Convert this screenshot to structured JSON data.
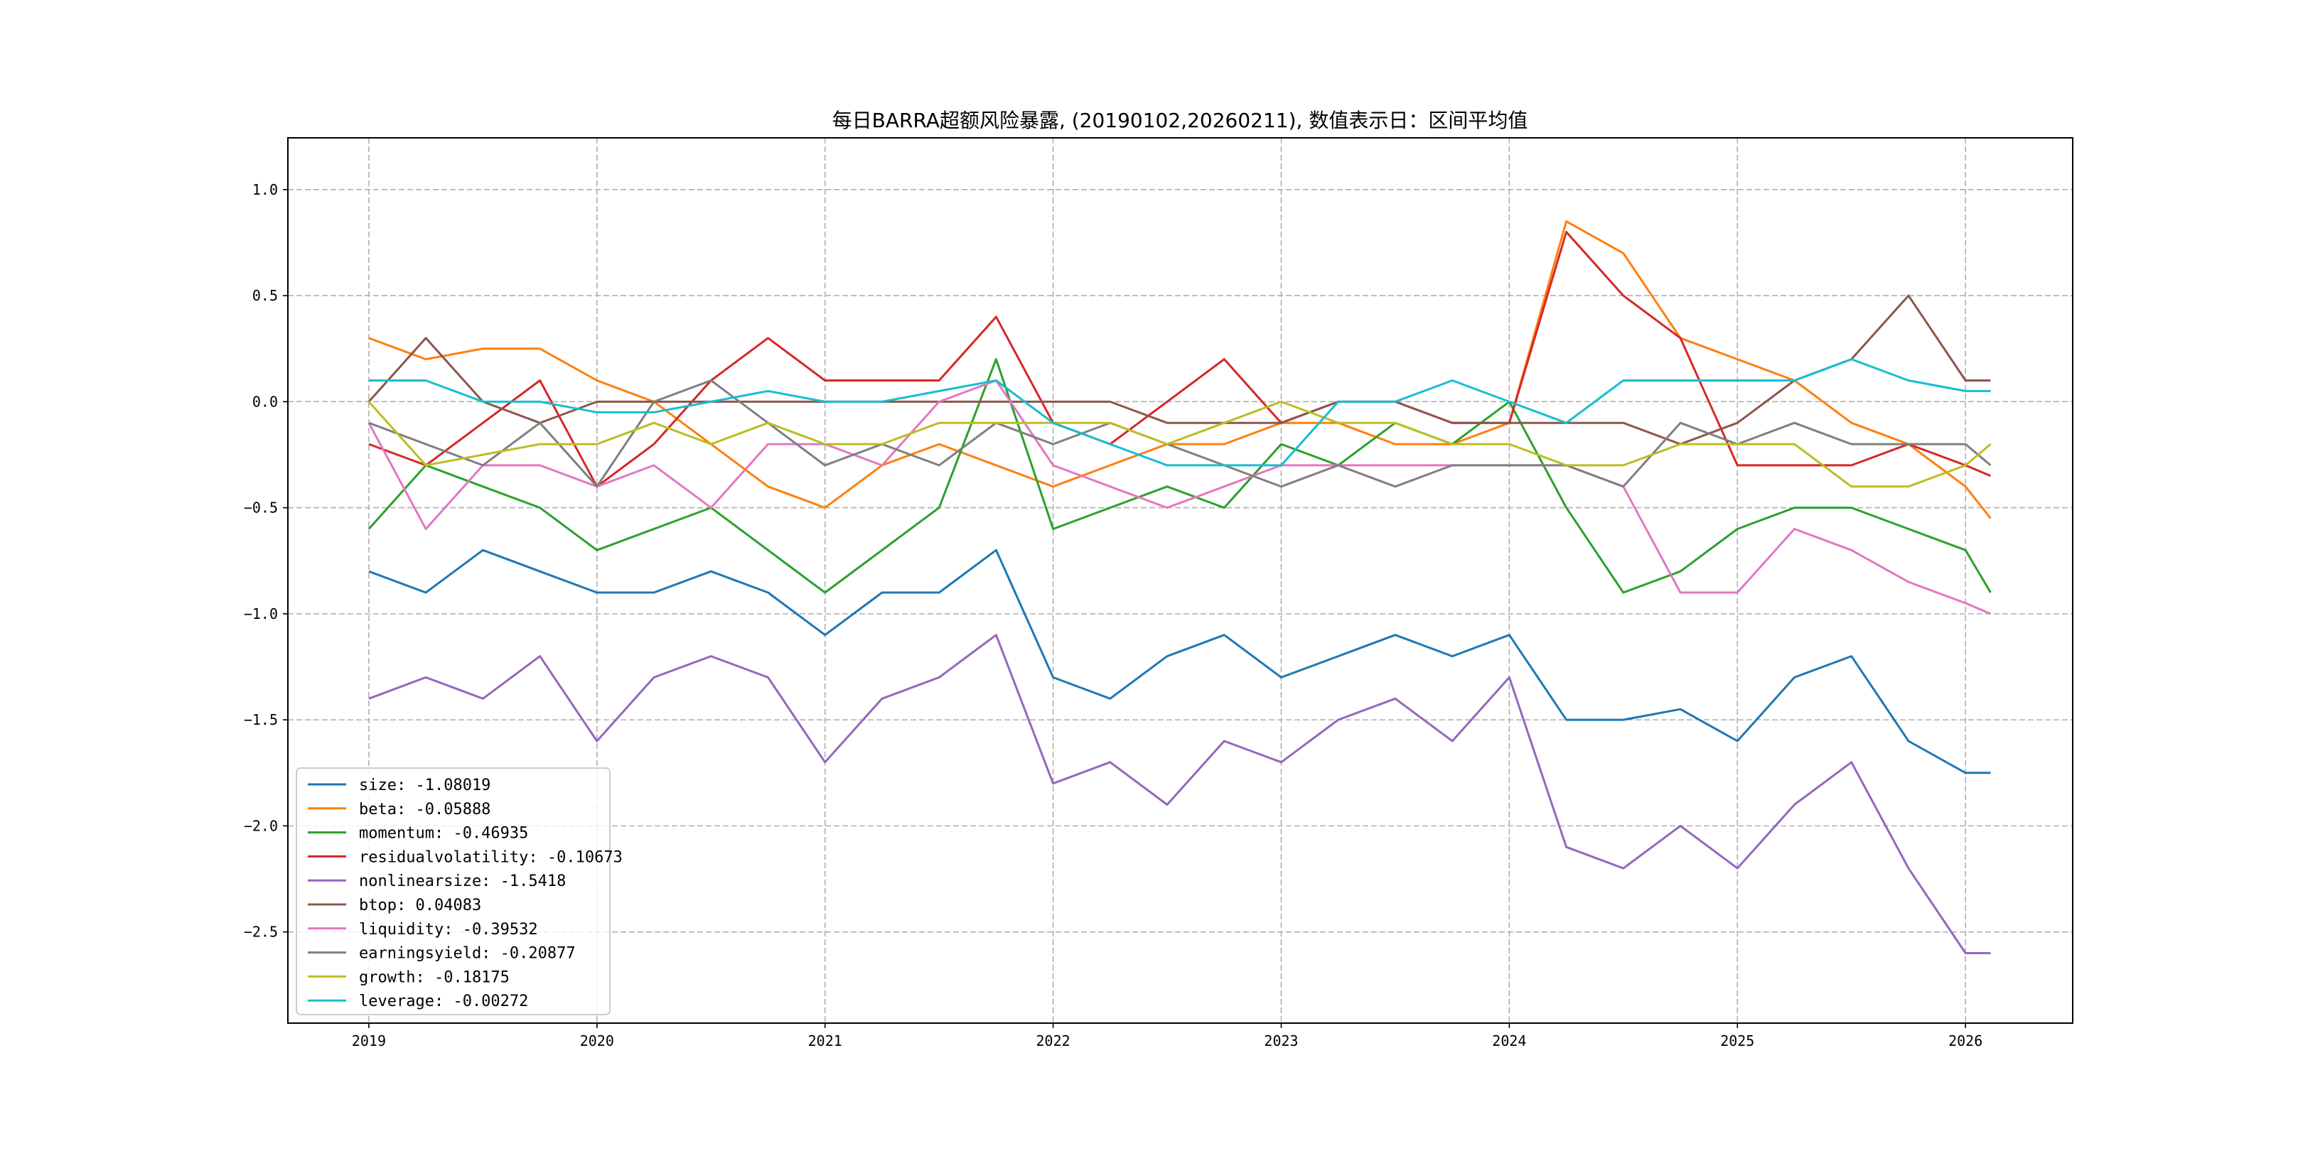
{
  "chart_data": {
    "type": "line",
    "title": "每日BARRA超额风险暴露, (20190102,20260211), 数值表示日：区间平均值",
    "xlabel": "",
    "ylabel": "",
    "xlim": [
      2018.645,
      2026.47
    ],
    "ylim": [
      -2.93,
      1.244
    ],
    "grid": true,
    "legend_position": "lower-left",
    "x_ticks": [
      2019,
      2020,
      2021,
      2022,
      2023,
      2024,
      2025,
      2026
    ],
    "x_tick_labels": [
      "2019",
      "2020",
      "2021",
      "2022",
      "2023",
      "2024",
      "2025",
      "2026"
    ],
    "y_ticks": [
      1.0,
      0.5,
      0.0,
      -0.5,
      -1.0,
      -1.5,
      -2.0,
      -2.5
    ],
    "y_tick_labels": [
      "1.0",
      "0.5",
      "0.0",
      "−0.5",
      "−1.0",
      "−1.5",
      "−2.0",
      "−2.5"
    ],
    "x": [
      2019.0,
      2019.25,
      2019.5,
      2019.75,
      2020.0,
      2020.25,
      2020.5,
      2020.75,
      2021.0,
      2021.25,
      2021.5,
      2021.75,
      2022.0,
      2022.25,
      2022.5,
      2022.75,
      2023.0,
      2023.25,
      2023.5,
      2023.75,
      2024.0,
      2024.25,
      2024.5,
      2024.75,
      2025.0,
      2025.25,
      2025.5,
      2025.75,
      2026.0,
      2026.11
    ],
    "series": [
      {
        "name": "size",
        "label": "size: -1.08019",
        "color": "#1f77b4",
        "values": [
          -0.8,
          -0.9,
          -0.7,
          -0.8,
          -0.9,
          -0.9,
          -0.8,
          -0.9,
          -1.1,
          -0.9,
          -0.9,
          -0.7,
          -1.3,
          -1.4,
          -1.2,
          -1.1,
          -1.3,
          -1.2,
          -1.1,
          -1.2,
          -1.1,
          -1.5,
          -1.5,
          -1.45,
          -1.6,
          -1.3,
          -1.2,
          -1.6,
          -1.75,
          -1.75
        ]
      },
      {
        "name": "beta",
        "label": "beta: -0.05888",
        "color": "#ff7f0e",
        "values": [
          0.3,
          0.2,
          0.25,
          0.25,
          0.1,
          0.0,
          -0.2,
          -0.4,
          -0.5,
          -0.3,
          -0.2,
          -0.3,
          -0.4,
          -0.3,
          -0.2,
          -0.2,
          -0.1,
          -0.1,
          -0.2,
          -0.2,
          -0.1,
          0.85,
          0.7,
          0.3,
          0.2,
          0.1,
          -0.1,
          -0.2,
          -0.4,
          -0.55
        ]
      },
      {
        "name": "momentum",
        "label": "momentum: -0.46935",
        "color": "#2ca02c",
        "values": [
          -0.6,
          -0.3,
          -0.4,
          -0.5,
          -0.7,
          -0.6,
          -0.5,
          -0.7,
          -0.9,
          -0.7,
          -0.5,
          0.2,
          -0.6,
          -0.5,
          -0.4,
          -0.5,
          -0.2,
          -0.3,
          -0.1,
          -0.2,
          0.0,
          -0.5,
          -0.9,
          -0.8,
          -0.6,
          -0.5,
          -0.5,
          -0.6,
          -0.7,
          -0.9
        ]
      },
      {
        "name": "residualvolatility",
        "label": "residualvolatility: -0.10673",
        "color": "#d62728",
        "values": [
          -0.2,
          -0.3,
          -0.1,
          0.1,
          -0.4,
          -0.2,
          0.1,
          0.3,
          0.1,
          0.1,
          0.1,
          0.4,
          -0.1,
          -0.2,
          0.0,
          0.2,
          -0.1,
          0.0,
          0.0,
          -0.1,
          -0.1,
          0.8,
          0.5,
          0.3,
          -0.3,
          -0.3,
          -0.3,
          -0.2,
          -0.3,
          -0.35
        ]
      },
      {
        "name": "nonlinearsize",
        "label": "nonlinearsize: -1.5418",
        "color": "#9467bd",
        "values": [
          -1.4,
          -1.3,
          -1.4,
          -1.2,
          -1.6,
          -1.3,
          -1.2,
          -1.3,
          -1.7,
          -1.4,
          -1.3,
          -1.1,
          -1.8,
          -1.7,
          -1.9,
          -1.6,
          -1.7,
          -1.5,
          -1.4,
          -1.6,
          -1.3,
          -2.1,
          -2.2,
          -2.0,
          -2.2,
          -1.9,
          -1.7,
          -2.2,
          -2.6,
          -2.6
        ]
      },
      {
        "name": "btop",
        "label": "btop: 0.04083",
        "color": "#8c564b",
        "values": [
          0.0,
          0.3,
          0.0,
          -0.1,
          0.0,
          0.0,
          0.0,
          0.0,
          0.0,
          0.0,
          0.0,
          0.0,
          0.0,
          0.0,
          -0.1,
          -0.1,
          -0.1,
          0.0,
          0.0,
          -0.1,
          -0.1,
          -0.1,
          -0.1,
          -0.2,
          -0.1,
          0.1,
          0.2,
          0.5,
          0.1,
          0.1
        ]
      },
      {
        "name": "liquidity",
        "label": "liquidity: -0.39532",
        "color": "#e377c2",
        "values": [
          -0.1,
          -0.6,
          -0.3,
          -0.3,
          -0.4,
          -0.3,
          -0.5,
          -0.2,
          -0.2,
          -0.3,
          0.0,
          0.1,
          -0.3,
          -0.4,
          -0.5,
          -0.4,
          -0.3,
          -0.3,
          -0.3,
          -0.3,
          -0.3,
          -0.3,
          -0.4,
          -0.9,
          -0.9,
          -0.6,
          -0.7,
          -0.85,
          -0.95,
          -1.0
        ]
      },
      {
        "name": "earningsyield",
        "label": "earningsyield: -0.20877",
        "color": "#7f7f7f",
        "values": [
          -0.1,
          -0.2,
          -0.3,
          -0.1,
          -0.4,
          0.0,
          0.1,
          -0.1,
          -0.3,
          -0.2,
          -0.3,
          -0.1,
          -0.2,
          -0.1,
          -0.2,
          -0.3,
          -0.4,
          -0.3,
          -0.4,
          -0.3,
          -0.3,
          -0.3,
          -0.4,
          -0.1,
          -0.2,
          -0.1,
          -0.2,
          -0.2,
          -0.2,
          -0.3
        ]
      },
      {
        "name": "growth",
        "label": "growth: -0.18175",
        "color": "#bcbd22",
        "values": [
          0.0,
          -0.3,
          -0.25,
          -0.2,
          -0.2,
          -0.1,
          -0.2,
          -0.1,
          -0.2,
          -0.2,
          -0.1,
          -0.1,
          -0.1,
          -0.1,
          -0.2,
          -0.1,
          0.0,
          -0.1,
          -0.1,
          -0.2,
          -0.2,
          -0.3,
          -0.3,
          -0.2,
          -0.2,
          -0.2,
          -0.4,
          -0.4,
          -0.3,
          -0.2
        ]
      },
      {
        "name": "leverage",
        "label": "leverage: -0.00272",
        "color": "#17becf",
        "values": [
          0.1,
          0.1,
          0.0,
          0.0,
          -0.05,
          -0.05,
          0.0,
          0.05,
          0.0,
          0.0,
          0.05,
          0.1,
          -0.1,
          -0.2,
          -0.3,
          -0.3,
          -0.3,
          0.0,
          0.0,
          0.1,
          0.0,
          -0.1,
          0.1,
          0.1,
          0.1,
          0.1,
          0.2,
          0.1,
          0.05,
          0.05
        ]
      }
    ]
  }
}
